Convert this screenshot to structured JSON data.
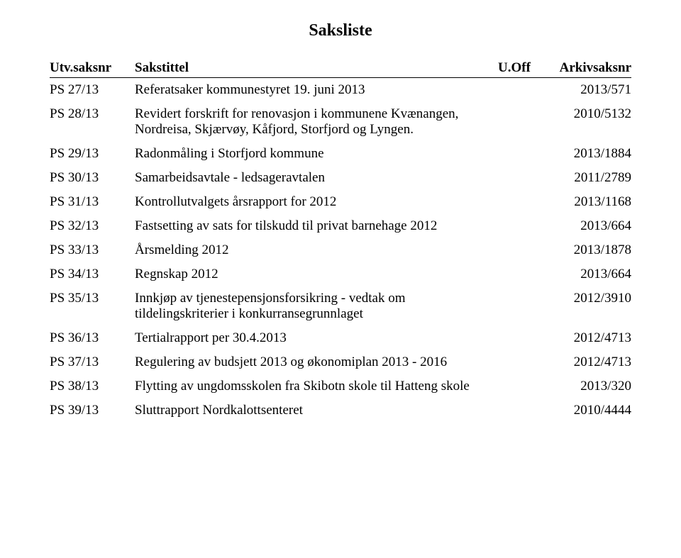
{
  "page": {
    "title": "Saksliste",
    "background_color": "#ffffff",
    "text_color": "#000000",
    "font_family": "Times New Roman",
    "title_fontsize": 24,
    "body_fontsize": 19
  },
  "columns": {
    "utv": "Utv.saksnr",
    "title": "Sakstittel",
    "uoff": "U.Off",
    "arkiv": "Arkivsaksnr"
  },
  "rows": [
    {
      "utv": "PS 27/13",
      "title": "Referatsaker kommunestyret 19. juni 2013",
      "uoff": "",
      "arkiv": "2013/571"
    },
    {
      "utv": "PS 28/13",
      "title": "Revidert forskrift for renovasjon i kommunene Kvænangen, Nordreisa, Skjærvøy, Kåfjord, Storfjord og Lyngen.",
      "uoff": "",
      "arkiv": "2010/5132"
    },
    {
      "utv": "PS 29/13",
      "title": "Radonmåling i Storfjord kommune",
      "uoff": "",
      "arkiv": "2013/1884"
    },
    {
      "utv": "PS 30/13",
      "title": "Samarbeidsavtale - ledsageravtalen",
      "uoff": "",
      "arkiv": "2011/2789"
    },
    {
      "utv": "PS 31/13",
      "title": "Kontrollutvalgets årsrapport for 2012",
      "uoff": "",
      "arkiv": "2013/1168"
    },
    {
      "utv": "PS 32/13",
      "title": "Fastsetting av sats for tilskudd til privat barnehage 2012",
      "uoff": "",
      "arkiv": "2013/664"
    },
    {
      "utv": "PS 33/13",
      "title": "Årsmelding 2012",
      "uoff": "",
      "arkiv": "2013/1878"
    },
    {
      "utv": "PS 34/13",
      "title": "Regnskap 2012",
      "uoff": "",
      "arkiv": "2013/664"
    },
    {
      "utv": "PS 35/13",
      "title": "Innkjøp av tjenestepensjonsforsikring - vedtak om tildelingskriterier i konkurransegrunnlaget",
      "uoff": "",
      "arkiv": "2012/3910"
    },
    {
      "utv": "PS 36/13",
      "title": "Tertialrapport per 30.4.2013",
      "uoff": "",
      "arkiv": "2012/4713"
    },
    {
      "utv": "PS 37/13",
      "title": "Regulering av budsjett 2013 og økonomiplan 2013 - 2016",
      "uoff": "",
      "arkiv": "2012/4713"
    },
    {
      "utv": "PS 38/13",
      "title": "Flytting av ungdomsskolen fra Skibotn skole til Hatteng skole",
      "uoff": "",
      "arkiv": "2013/320"
    },
    {
      "utv": "PS 39/13",
      "title": "Sluttrapport Nordkalottsenteret",
      "uoff": "",
      "arkiv": "2010/4444"
    }
  ]
}
